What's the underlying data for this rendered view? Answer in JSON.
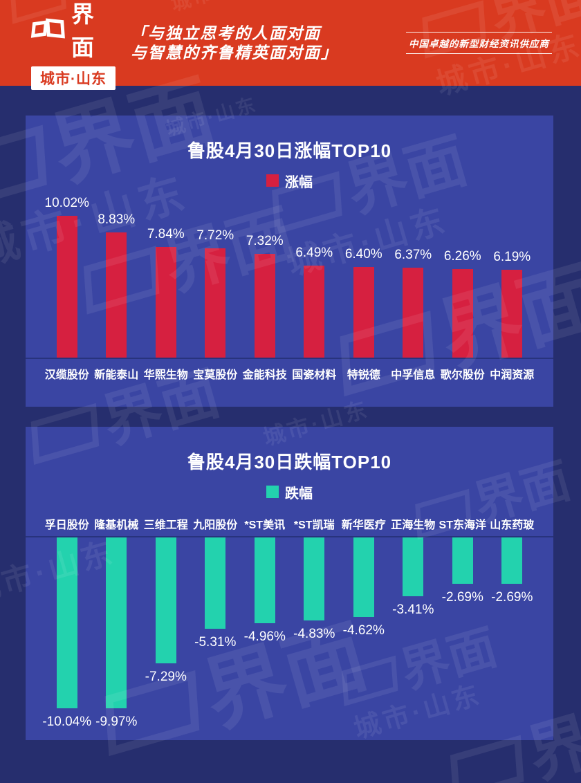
{
  "header": {
    "logo": {
      "brand": "界面",
      "region": "城市·山东"
    },
    "quote_line1": "「与独立思考的人面对面",
    "quote_line2": "与智慧的齐鲁精英面对面」",
    "tagline": "中国卓越的新型财经资讯供应商"
  },
  "watermark": {
    "brand": "界面",
    "region": "城市·山东"
  },
  "colors": {
    "header_bg": "#d93a20",
    "page_bg": "#262e6e",
    "panel_bg": "#3a45a3",
    "gain_bar": "#d62040",
    "loss_bar": "#23d2ae",
    "text": "#ffffff"
  },
  "chart_data": [
    {
      "type": "bar",
      "title": "鲁股4月30日涨幅TOP10",
      "legend": "涨幅",
      "direction": "up",
      "bar_color": "#d62040",
      "categories": [
        "汉缆股份",
        "新能泰山",
        "华熙生物",
        "宝莫股份",
        "金能科技",
        "国瓷材料",
        "特锐德",
        "中孚信息",
        "歌尔股份",
        "中润资源"
      ],
      "values": [
        10.02,
        8.83,
        7.84,
        7.72,
        7.32,
        6.49,
        6.4,
        6.37,
        6.26,
        6.19
      ],
      "value_labels": [
        "10.02%",
        "8.83%",
        "7.84%",
        "7.72%",
        "7.32%",
        "6.49%",
        "6.40%",
        "6.37%",
        "6.26%",
        "6.19%"
      ],
      "ylim": [
        0,
        10.02
      ],
      "grid": false,
      "legend_position": "top-center"
    },
    {
      "type": "bar",
      "title": "鲁股4月30日跌幅TOP10",
      "legend": "跌幅",
      "direction": "down",
      "bar_color": "#23d2ae",
      "categories": [
        "孚日股份",
        "隆基机械",
        "三维工程",
        "九阳股份",
        "*ST美讯",
        "*ST凯瑞",
        "新华医疗",
        "正海生物",
        "ST东海洋",
        "山东药玻"
      ],
      "values": [
        -10.04,
        -9.97,
        -7.29,
        -5.31,
        -4.96,
        -4.83,
        -4.62,
        -3.41,
        -2.69,
        -2.69
      ],
      "value_labels": [
        "-10.04%",
        "-9.97%",
        "-7.29%",
        "-5.31%",
        "-4.96%",
        "-4.83%",
        "-4.62%",
        "-3.41%",
        "-2.69%",
        "-2.69%"
      ],
      "ylim": [
        -10.04,
        0
      ],
      "grid": false,
      "legend_position": "top-center"
    }
  ]
}
